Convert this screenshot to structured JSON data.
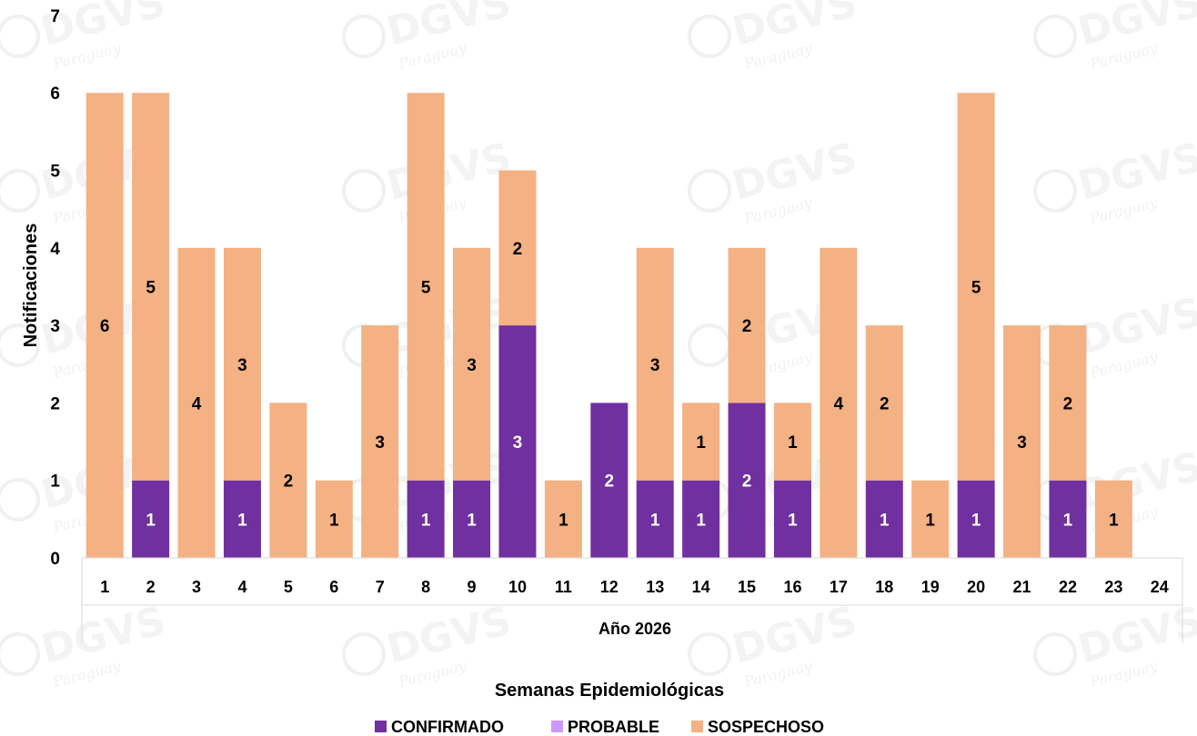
{
  "chart_data": {
    "type": "bar",
    "stacked": true,
    "x_group_label": "Año 2026",
    "xlabel": "Semanas Epidemiológicas",
    "ylabel": "Notificaciones",
    "ylim": [
      0,
      7
    ],
    "yticks": [
      "0",
      "1",
      "2",
      "3",
      "4",
      "5",
      "6",
      "7"
    ],
    "grid": false,
    "legend_position": "bottom",
    "categories": [
      "1",
      "2",
      "3",
      "4",
      "5",
      "6",
      "7",
      "8",
      "9",
      "10",
      "11",
      "12",
      "13",
      "14",
      "15",
      "16",
      "17",
      "18",
      "19",
      "20",
      "21",
      "22",
      "23",
      "24"
    ],
    "series": [
      {
        "name": "CONFIRMADO",
        "color": "#7030a0",
        "label_color": "#ffffff",
        "values": [
          0,
          1,
          0,
          1,
          0,
          0,
          0,
          1,
          1,
          3,
          0,
          2,
          1,
          1,
          2,
          1,
          0,
          1,
          0,
          1,
          0,
          1,
          0,
          0
        ]
      },
      {
        "name": "PROBABLE",
        "color": "#cc99ff",
        "label_color": "#000000",
        "values": [
          0,
          0,
          0,
          0,
          0,
          0,
          0,
          0,
          0,
          0,
          0,
          0,
          0,
          0,
          0,
          0,
          0,
          0,
          0,
          0,
          0,
          0,
          0,
          0
        ]
      },
      {
        "name": "SOSPECHOSO",
        "color": "#f4b183",
        "label_color": "#000000",
        "values": [
          6,
          5,
          4,
          3,
          2,
          1,
          3,
          5,
          3,
          2,
          1,
          0,
          3,
          1,
          2,
          1,
          4,
          2,
          1,
          5,
          3,
          2,
          1,
          0
        ]
      }
    ]
  },
  "watermark": {
    "logo_text": "DGVS",
    "logo_script": "Paraguay",
    "color": "#f3f3f3"
  }
}
